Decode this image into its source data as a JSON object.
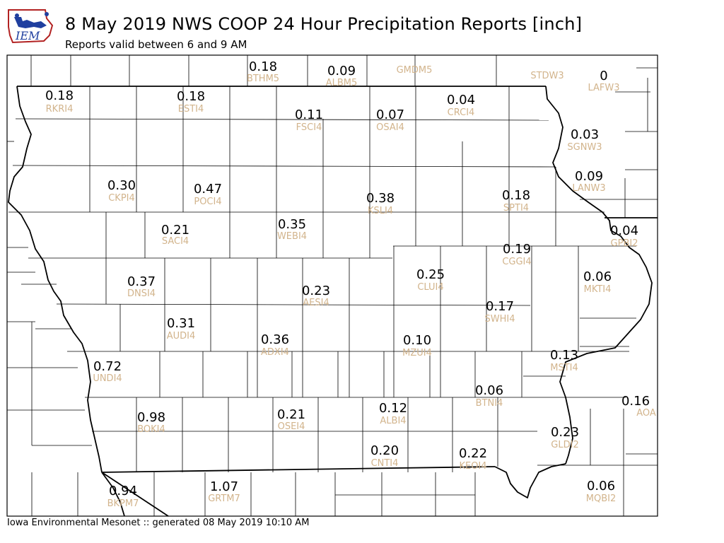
{
  "header": {
    "title": "8 May 2019 NWS COOP 24 Hour Precipitation Reports [inch]",
    "subtitle": "Reports valid between 6 and 9 AM"
  },
  "logo": {
    "text": "IEM",
    "icon": "iem-logo-icon"
  },
  "footer": {
    "text": "Iowa Environmental Mesonet :: generated 08 May 2019 10:10 AM"
  },
  "colors": {
    "value": "#000000",
    "station": "#d2b48c",
    "border": "#000000",
    "logo_blue": "#1f3f9f",
    "logo_red": "#b22222"
  },
  "map": {
    "stations": [
      {
        "id": "BTHM5",
        "value": "0.18"
      },
      {
        "id": "ALBM5",
        "value": "0.09"
      },
      {
        "id": "GMDM5",
        "value": ""
      },
      {
        "id": "STDW3",
        "value": ""
      },
      {
        "id": "LAFW3",
        "value": "0"
      },
      {
        "id": "RKRI4",
        "value": "0.18"
      },
      {
        "id": "ESTI4",
        "value": "0.18"
      },
      {
        "id": "FSCI4",
        "value": "0.11"
      },
      {
        "id": "OSAI4",
        "value": "0.07"
      },
      {
        "id": "CRCI4",
        "value": "0.04"
      },
      {
        "id": "SGNW3",
        "value": "0.03"
      },
      {
        "id": "LANW3",
        "value": "0.09"
      },
      {
        "id": "CKPI4",
        "value": "0.30"
      },
      {
        "id": "POCI4",
        "value": "0.47"
      },
      {
        "id": "KSLI4",
        "value": "0.38"
      },
      {
        "id": "SPTI4",
        "value": "0.18"
      },
      {
        "id": "SACI4",
        "value": "0.21"
      },
      {
        "id": "WEBI4",
        "value": "0.35"
      },
      {
        "id": "GPBI2",
        "value": "0.04"
      },
      {
        "id": "CGGI4",
        "value": "0.19"
      },
      {
        "id": "CLUI4",
        "value": "0.25"
      },
      {
        "id": "DNSI4",
        "value": "0.37"
      },
      {
        "id": "AESI4",
        "value": "0.23"
      },
      {
        "id": "MKTI4",
        "value": "0.06"
      },
      {
        "id": "SWHI4",
        "value": "0.17"
      },
      {
        "id": "AUDI4",
        "value": "0.31"
      },
      {
        "id": "ADXI4",
        "value": "0.36"
      },
      {
        "id": "MZUI4",
        "value": "0.10"
      },
      {
        "id": "MSTI4",
        "value": "0.13"
      },
      {
        "id": "UNDI4",
        "value": "0.72"
      },
      {
        "id": "BTNI4",
        "value": "0.06"
      },
      {
        "id": "AOA",
        "value": "0.16"
      },
      {
        "id": "BOKI4",
        "value": "0.98"
      },
      {
        "id": "OSEI4",
        "value": "0.21"
      },
      {
        "id": "ALBI4",
        "value": "0.12"
      },
      {
        "id": "GLDI2",
        "value": "0.23"
      },
      {
        "id": "CNTI4",
        "value": "0.20"
      },
      {
        "id": "KEOI4",
        "value": "0.22"
      },
      {
        "id": "BKPM7",
        "value": "0.94"
      },
      {
        "id": "GRTM7",
        "value": "1.07"
      },
      {
        "id": "MQBI2",
        "value": "0.06"
      }
    ]
  }
}
